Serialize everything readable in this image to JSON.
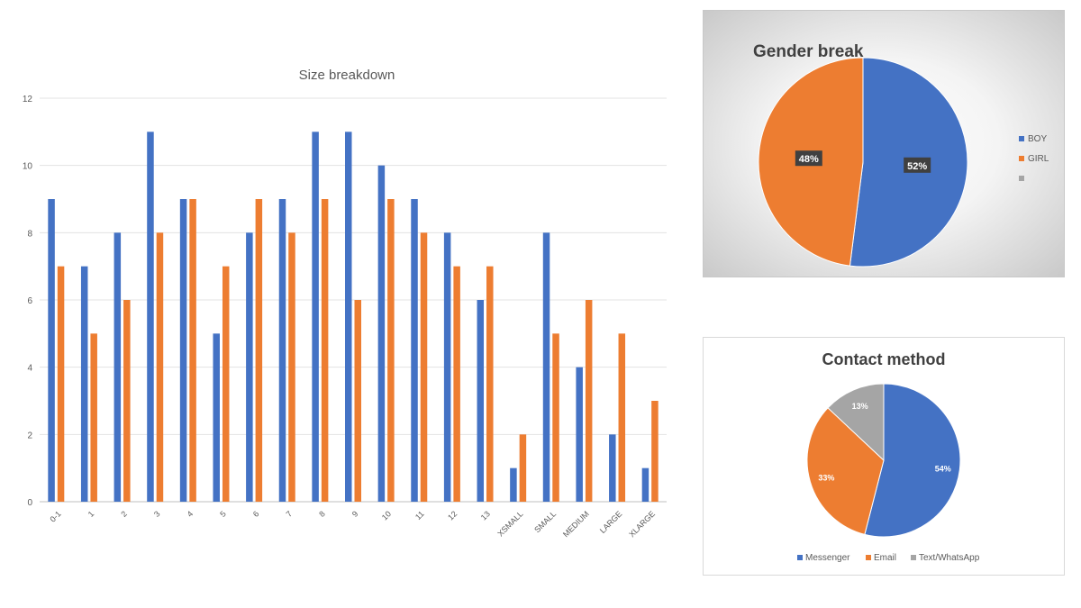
{
  "chart_data": [
    {
      "type": "bar",
      "title": "Size breakdown",
      "categories": [
        "0-1",
        "1",
        "2",
        "3",
        "4",
        "5",
        "6",
        "7",
        "8",
        "9",
        "10",
        "11",
        "12",
        "13",
        "XSMALL",
        "SMALL",
        "MEDIUM",
        "LARGE",
        "XLARGE"
      ],
      "series": [
        {
          "color": "#4472C4",
          "values": [
            9,
            7,
            8,
            11,
            9,
            5,
            8,
            9,
            11,
            11,
            10,
            9,
            8,
            6,
            1,
            8,
            4,
            2,
            1
          ]
        },
        {
          "color": "#ED7D31",
          "values": [
            7,
            5,
            6,
            8,
            9,
            7,
            9,
            8,
            9,
            6,
            9,
            8,
            7,
            7,
            2,
            5,
            6,
            5,
            3
          ]
        }
      ],
      "yticks": [
        "0",
        "2",
        "4",
        "6",
        "8",
        "10",
        "12"
      ],
      "ylim": [
        0,
        12
      ],
      "grid": true
    },
    {
      "type": "pie",
      "title": "Gender break",
      "slices": [
        {
          "label": "BOY",
          "value": 52,
          "display": "52%",
          "color": "#4472C4"
        },
        {
          "label": "GIRL",
          "value": 48,
          "display": "48%",
          "color": "#ED7D31"
        },
        {
          "label": "",
          "value": 0,
          "display": "",
          "color": "#A5A5A5"
        }
      ],
      "legend": "right"
    },
    {
      "type": "pie",
      "title": "Contact method",
      "slices": [
        {
          "label": "Messenger",
          "value": 54,
          "display": "54%",
          "color": "#4472C4"
        },
        {
          "label": "Email",
          "value": 33,
          "display": "33%",
          "color": "#ED7D31"
        },
        {
          "label": "Text/WhatsApp",
          "value": 13,
          "display": "13%",
          "color": "#A5A5A5"
        }
      ],
      "legend": "bottom"
    }
  ]
}
